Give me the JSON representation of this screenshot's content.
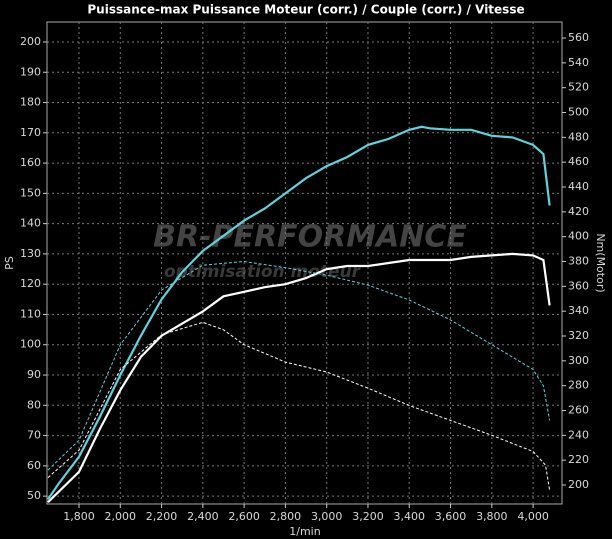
{
  "chart_data": {
    "type": "line",
    "title": "Puissance-max Puissance Moteur (corr.) / Couple (corr.) / Vitesse",
    "y_label": "PS",
    "y2_label": "Nm(Motor)",
    "x_label": "1/min",
    "watermark": [
      "BR-PERFORMANCE",
      "optimisation moteur"
    ],
    "xlim": [
      1645,
      4140
    ],
    "ylim": [
      47.4,
      206.6
    ],
    "y2lim": [
      184.7,
      572.9
    ],
    "xticks": [
      {
        "value": 1800,
        "label": "1,800"
      },
      {
        "value": 2000,
        "label": "2,000"
      },
      {
        "value": 2200,
        "label": "2,200"
      },
      {
        "value": 2400,
        "label": "2,400"
      },
      {
        "value": 2600,
        "label": "2,600"
      },
      {
        "value": 2800,
        "label": "2,800"
      },
      {
        "value": 3000,
        "label": "3,000"
      },
      {
        "value": 3200,
        "label": "3,200"
      },
      {
        "value": 3400,
        "label": "3,400"
      },
      {
        "value": 3600,
        "label": "3,600"
      },
      {
        "value": 3800,
        "label": "3,800"
      },
      {
        "value": 4000,
        "label": "4,000"
      }
    ],
    "yticks": [
      50,
      60,
      70,
      80,
      90,
      100,
      110,
      120,
      130,
      140,
      150,
      160,
      170,
      180,
      190,
      200
    ],
    "y2ticks": [
      200,
      220,
      240,
      260,
      280,
      300,
      320,
      340,
      360,
      380,
      400,
      420,
      440,
      460,
      480,
      500,
      520,
      540,
      560
    ],
    "grid": true,
    "series": [
      {
        "color": "#5fd3dc",
        "dash": false,
        "axis": "y",
        "x": [
          1650,
          1700,
          1800,
          1900,
          2000,
          2100,
          2200,
          2300,
          2400,
          2500,
          2600,
          2700,
          2800,
          2900,
          3000,
          3100,
          3200,
          3300,
          3400,
          3460,
          3500,
          3600,
          3700,
          3800,
          3900,
          4000,
          4050,
          4080
        ],
        "values": [
          49,
          54,
          63,
          76,
          90,
          103,
          115,
          124,
          131,
          136,
          141,
          145,
          150,
          155,
          159,
          162,
          166,
          168,
          171,
          172,
          171.5,
          171,
          171,
          169,
          168.5,
          166,
          163,
          146
        ]
      },
      {
        "color": "#ffffff",
        "dash": false,
        "axis": "y",
        "x": [
          1650,
          1800,
          1900,
          2000,
          2100,
          2200,
          2300,
          2400,
          2500,
          2600,
          2700,
          2800,
          2900,
          3000,
          3100,
          3200,
          3300,
          3400,
          3500,
          3600,
          3700,
          3800,
          3900,
          4000,
          4050,
          4080
        ],
        "values": [
          48,
          58,
          72,
          85,
          96,
          103,
          107,
          111,
          116,
          117.5,
          119,
          120,
          122,
          125,
          126,
          126,
          127,
          128,
          128,
          128,
          129,
          129.5,
          130,
          129.5,
          128,
          113
        ]
      },
      {
        "color": "#5fd3dc",
        "dash": true,
        "axis": "y2",
        "x": [
          1650,
          1800,
          2000,
          2200,
          2400,
          2600,
          2800,
          3000,
          3200,
          3400,
          3600,
          3800,
          4000,
          4050,
          4080
        ],
        "values": [
          212,
          236,
          313,
          357,
          377,
          380,
          375,
          369,
          361,
          349,
          333,
          313,
          293,
          280,
          252
        ]
      },
      {
        "color": "#ffffff",
        "dash": true,
        "axis": "y2",
        "x": [
          1650,
          1800,
          2000,
          2200,
          2400,
          2500,
          2600,
          2800,
          3000,
          3200,
          3400,
          3600,
          3800,
          4000,
          4060,
          4080
        ],
        "values": [
          206,
          228,
          293,
          321,
          331,
          325,
          313,
          299,
          291,
          278,
          264,
          252,
          240,
          227,
          216,
          196
        ]
      }
    ]
  }
}
